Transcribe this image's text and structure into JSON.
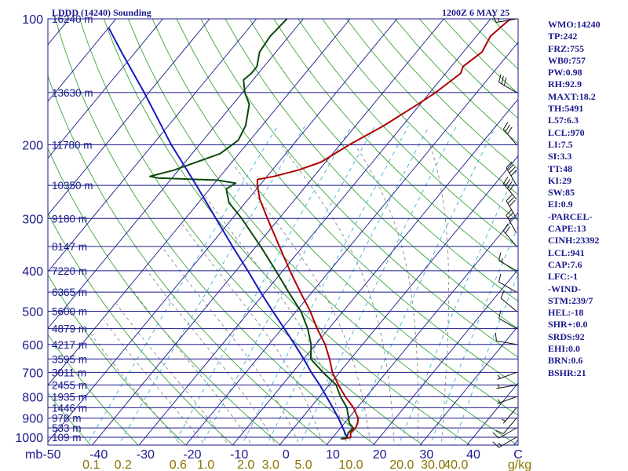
{
  "header": {
    "station": "LDDD (14240) Sounding",
    "time": "1200Z  6 MAY 25"
  },
  "stats": [
    "WMO:14240",
    "TP:242",
    "FRZ:755",
    "WB0:757",
    "PW:0.98",
    "RH:92.9",
    "MAXT:18.2",
    "TH:5491",
    "L57:6.3",
    "LCL:970",
    "LI:7.5",
    "SI:3.3",
    "TT:48",
    "KI:29",
    "SW:85",
    "EI:0.9",
    "-PARCEL-",
    "CAPE:13",
    "CINH:23392",
    "LCL:941",
    "CAP:7.6",
    "LFC:-1",
    "-WIND-",
    "STM:239/7",
    "HEL:-18",
    "SHR+:0.0",
    "SRDS:92",
    "EHI:0.0",
    "BRN:0.6",
    "BSHR:21"
  ],
  "chart_data": {
    "type": "line",
    "subtype": "skew-t log-p sounding",
    "title": "LDDD (14240) Sounding",
    "ylabel": "mb",
    "xlabel": "",
    "x_unit_mixing_ratio": "g/kg",
    "ylim": [
      1000,
      100
    ],
    "xlim": [
      -50,
      50
    ],
    "y_scale": "log",
    "x_ticks": [
      "-50",
      "-40",
      "-30",
      "-20",
      "-10",
      "0",
      "10",
      "20",
      "30",
      "40",
      "C"
    ],
    "x_tick_values": [
      -50,
      -40,
      -30,
      -20,
      -10,
      0,
      10,
      20,
      30,
      40
    ],
    "y_ticks": [
      "100",
      "200",
      "300",
      "400",
      "500",
      "600",
      "700",
      "800",
      "900",
      "1000"
    ],
    "y_tick_values": [
      100,
      200,
      300,
      400,
      500,
      600,
      700,
      800,
      900,
      1000
    ],
    "mixing_ratio_labels": [
      "0.1",
      "0.2",
      "0.6",
      "1.0",
      "2.0",
      "3.0",
      "5.0",
      "10.0",
      "20.0",
      "30.0",
      "40.0"
    ],
    "mixing_ratio_values": [
      0.1,
      0.2,
      0.6,
      1.0,
      2.0,
      3.0,
      5.0,
      10.0,
      20.0,
      30.0,
      40.0
    ],
    "heights": [
      {
        "label": "16240 m",
        "p": 100
      },
      {
        "label": "13630 m",
        "p": 150
      },
      {
        "label": "11780 m",
        "p": 200
      },
      {
        "label": "10350 m",
        "p": 250
      },
      {
        "label": "9180 m",
        "p": 300
      },
      {
        "label": "8147 m",
        "p": 350
      },
      {
        "label": "7220 m",
        "p": 400
      },
      {
        "label": "6365 m",
        "p": 450
      },
      {
        "label": "5600 m",
        "p": 500
      },
      {
        "label": "4879 m",
        "p": 550
      },
      {
        "label": "4217 m",
        "p": 600
      },
      {
        "label": "3595 m",
        "p": 650
      },
      {
        "label": "3011 m",
        "p": 700
      },
      {
        "label": "2455 m",
        "p": 750
      },
      {
        "label": "1935 m",
        "p": 800
      },
      {
        "label": "1446 m",
        "p": 850
      },
      {
        "label": "978 m",
        "p": 900
      },
      {
        "label": "533 m",
        "p": 950
      },
      {
        "label": "109 m",
        "p": 1000
      }
    ],
    "series": [
      {
        "color": "#b00000",
        "points": [
          {
            "p": 1010,
            "t": 12.5
          },
          {
            "p": 1000,
            "t": 13.8
          },
          {
            "p": 975,
            "t": 13.0
          },
          {
            "p": 950,
            "t": 13.2
          },
          {
            "p": 925,
            "t": 12.8
          },
          {
            "p": 900,
            "t": 12.0
          },
          {
            "p": 850,
            "t": 9.2
          },
          {
            "p": 800,
            "t": 5.5
          },
          {
            "p": 750,
            "t": 2.0
          },
          {
            "p": 700,
            "t": -1.5
          },
          {
            "p": 650,
            "t": -4.5
          },
          {
            "p": 600,
            "t": -8.0
          },
          {
            "p": 550,
            "t": -12.5
          },
          {
            "p": 500,
            "t": -17.0
          },
          {
            "p": 450,
            "t": -22.5
          },
          {
            "p": 400,
            "t": -28.5
          },
          {
            "p": 350,
            "t": -35.0
          },
          {
            "p": 300,
            "t": -42.5
          },
          {
            "p": 270,
            "t": -47.5
          },
          {
            "p": 250,
            "t": -50.5
          },
          {
            "p": 242,
            "t": -51.5
          },
          {
            "p": 238,
            "t": -48.5
          },
          {
            "p": 230,
            "t": -44.5
          },
          {
            "p": 220,
            "t": -41.0
          },
          {
            "p": 200,
            "t": -38.0
          },
          {
            "p": 180,
            "t": -34.0
          },
          {
            "p": 160,
            "t": -30.5
          },
          {
            "p": 150,
            "t": -28.8
          },
          {
            "p": 135,
            "t": -26.8
          },
          {
            "p": 130,
            "t": -27.5
          },
          {
            "p": 120,
            "t": -26.0
          },
          {
            "p": 110,
            "t": -27.0
          },
          {
            "p": 100,
            "t": -25.8
          }
        ]
      },
      {
        "color": "#0a4a0a",
        "points": [
          {
            "p": 1010,
            "t": 12.0
          },
          {
            "p": 1000,
            "t": 13.0
          },
          {
            "p": 975,
            "t": 12.5
          },
          {
            "p": 950,
            "t": 12.7
          },
          {
            "p": 925,
            "t": 11.0
          },
          {
            "p": 900,
            "t": 10.0
          },
          {
            "p": 850,
            "t": 7.8
          },
          {
            "p": 800,
            "t": 4.5
          },
          {
            "p": 750,
            "t": 1.5
          },
          {
            "p": 700,
            "t": -3.5
          },
          {
            "p": 650,
            "t": -8.5
          },
          {
            "p": 600,
            "t": -11.0
          },
          {
            "p": 550,
            "t": -14.5
          },
          {
            "p": 500,
            "t": -19.0
          },
          {
            "p": 450,
            "t": -25.0
          },
          {
            "p": 400,
            "t": -31.5
          },
          {
            "p": 350,
            "t": -39.0
          },
          {
            "p": 300,
            "t": -48.0
          },
          {
            "p": 275,
            "t": -53.5
          },
          {
            "p": 255,
            "t": -56.5
          },
          {
            "p": 247,
            "t": -55.5
          },
          {
            "p": 243,
            "t": -60.0
          },
          {
            "p": 240,
            "t": -73.0
          },
          {
            "p": 238,
            "t": -75.0
          },
          {
            "p": 230,
            "t": -71.0
          },
          {
            "p": 210,
            "t": -64.0
          },
          {
            "p": 195,
            "t": -62.5
          },
          {
            "p": 180,
            "t": -63.5
          },
          {
            "p": 160,
            "t": -66.5
          },
          {
            "p": 150,
            "t": -69.5
          },
          {
            "p": 140,
            "t": -72.0
          },
          {
            "p": 135,
            "t": -71.5
          },
          {
            "p": 130,
            "t": -71.5
          },
          {
            "p": 120,
            "t": -73.5
          },
          {
            "p": 110,
            "t": -74.0
          },
          {
            "p": 100,
            "t": -73.5
          }
        ]
      },
      {
        "color": "#1818c0",
        "points": [
          {
            "p": 1000,
            "t": 13.0
          },
          {
            "p": 950,
            "t": 10.5
          },
          {
            "p": 900,
            "t": 7.8
          },
          {
            "p": 850,
            "t": 4.8
          },
          {
            "p": 800,
            "t": 1.5
          },
          {
            "p": 750,
            "t": -2.0
          },
          {
            "p": 700,
            "t": -6.0
          },
          {
            "p": 650,
            "t": -10.0
          },
          {
            "p": 600,
            "t": -14.5
          },
          {
            "p": 550,
            "t": -19.5
          },
          {
            "p": 500,
            "t": -25.0
          },
          {
            "p": 450,
            "t": -31.0
          },
          {
            "p": 400,
            "t": -37.5
          },
          {
            "p": 350,
            "t": -45.0
          },
          {
            "p": 300,
            "t": -53.5
          },
          {
            "p": 250,
            "t": -63.5
          },
          {
            "p": 200,
            "t": -76.0
          },
          {
            "p": 150,
            "t": -91.0
          },
          {
            "p": 120,
            "t": -103.0
          },
          {
            "p": 105,
            "t": -110.0
          }
        ]
      }
    ],
    "wind_barbs": [
      {
        "p": 1000,
        "dir": 240,
        "spd": 15
      },
      {
        "p": 950,
        "dir": 240,
        "spd": 10
      },
      {
        "p": 900,
        "dir": 220,
        "spd": 10
      },
      {
        "p": 850,
        "dir": 220,
        "spd": 5
      },
      {
        "p": 800,
        "dir": 250,
        "spd": 5
      },
      {
        "p": 750,
        "dir": 260,
        "spd": 5
      },
      {
        "p": 700,
        "dir": 250,
        "spd": 5
      },
      {
        "p": 600,
        "dir": 280,
        "spd": 10
      },
      {
        "p": 550,
        "dir": 300,
        "spd": 10
      },
      {
        "p": 500,
        "dir": 310,
        "spd": 10
      },
      {
        "p": 450,
        "dir": 300,
        "spd": 10
      },
      {
        "p": 400,
        "dir": 300,
        "spd": 15
      },
      {
        "p": 350,
        "dir": 320,
        "spd": 20
      },
      {
        "p": 325,
        "dir": 330,
        "spd": 25
      },
      {
        "p": 300,
        "dir": 330,
        "spd": 30
      },
      {
        "p": 270,
        "dir": 320,
        "spd": 40
      },
      {
        "p": 250,
        "dir": 330,
        "spd": 40
      },
      {
        "p": 200,
        "dir": 320,
        "spd": 30
      },
      {
        "p": 150,
        "dir": 300,
        "spd": 30
      },
      {
        "p": 100,
        "dir": 260,
        "spd": 15
      }
    ]
  }
}
